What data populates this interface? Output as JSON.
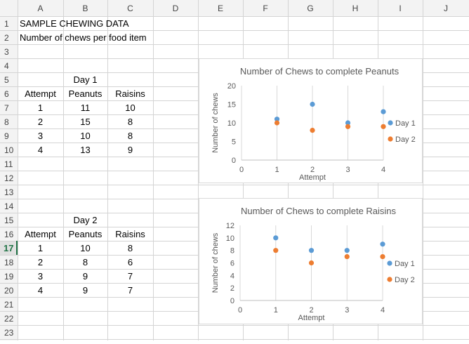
{
  "columns": [
    "A",
    "B",
    "C",
    "D",
    "E",
    "F",
    "G",
    "H",
    "I",
    "J"
  ],
  "rows": [
    "1",
    "2",
    "3",
    "4",
    "5",
    "6",
    "7",
    "8",
    "9",
    "10",
    "11",
    "12",
    "13",
    "14",
    "15",
    "16",
    "17",
    "18",
    "19",
    "20",
    "21",
    "22",
    "23"
  ],
  "active_row": "17",
  "cells": {
    "title": "SAMPLE CHEWING DATA",
    "subtitle": "Number of chews per food item",
    "day1": {
      "label": "Day 1",
      "headers": [
        "Attempt",
        "Peanuts",
        "Raisins"
      ],
      "rows": [
        [
          "1",
          "11",
          "10"
        ],
        [
          "2",
          "15",
          "8"
        ],
        [
          "3",
          "10",
          "8"
        ],
        [
          "4",
          "13",
          "9"
        ]
      ]
    },
    "day2": {
      "label": "Day 2",
      "headers": [
        "Attempt",
        "Peanuts",
        "Raisins"
      ],
      "rows": [
        [
          "1",
          "10",
          "8"
        ],
        [
          "2",
          "8",
          "6"
        ],
        [
          "3",
          "9",
          "7"
        ],
        [
          "4",
          "9",
          "7"
        ]
      ]
    }
  },
  "colors": {
    "header_bg": "#f3f3f3",
    "active_header_bg": "#e1e1e1",
    "active_header_text": "#217346",
    "grid": "#d4d4d4",
    "series1": "#5b9bd5",
    "series2": "#ed7d31",
    "axis": "#595959",
    "gridline": "#d9d9d9"
  },
  "chart_data": [
    {
      "type": "scatter",
      "title": "Number of Chews to complete Peanuts",
      "xlabel": "Attempt",
      "ylabel": "Number of chews",
      "xlim": [
        0,
        4
      ],
      "ylim": [
        0,
        20
      ],
      "xticks": [
        0,
        1,
        2,
        3,
        4
      ],
      "yticks": [
        0,
        5,
        10,
        15,
        20
      ],
      "grid": "vertical",
      "legend": "right",
      "series": [
        {
          "name": "Day 1",
          "x": [
            1,
            2,
            3,
            4
          ],
          "y": [
            11,
            15,
            10,
            13
          ],
          "color": "#5b9bd5"
        },
        {
          "name": "Day 2",
          "x": [
            1,
            2,
            3,
            4
          ],
          "y": [
            10,
            8,
            9,
            9
          ],
          "color": "#ed7d31"
        }
      ]
    },
    {
      "type": "scatter",
      "title": "Number of Chews to complete Raisins",
      "xlabel": "Attempt",
      "ylabel": "Number of chews",
      "xlim": [
        0,
        4
      ],
      "ylim": [
        0,
        12
      ],
      "xticks": [
        0,
        1,
        2,
        3,
        4
      ],
      "yticks": [
        0,
        2,
        4,
        6,
        8,
        10,
        12
      ],
      "grid": "vertical",
      "legend": "right",
      "series": [
        {
          "name": "Day 1",
          "x": [
            1,
            2,
            3,
            4
          ],
          "y": [
            10,
            8,
            8,
            9
          ],
          "color": "#5b9bd5"
        },
        {
          "name": "Day 2",
          "x": [
            1,
            2,
            3,
            4
          ],
          "y": [
            8,
            6,
            7,
            7
          ],
          "color": "#ed7d31"
        }
      ]
    }
  ]
}
